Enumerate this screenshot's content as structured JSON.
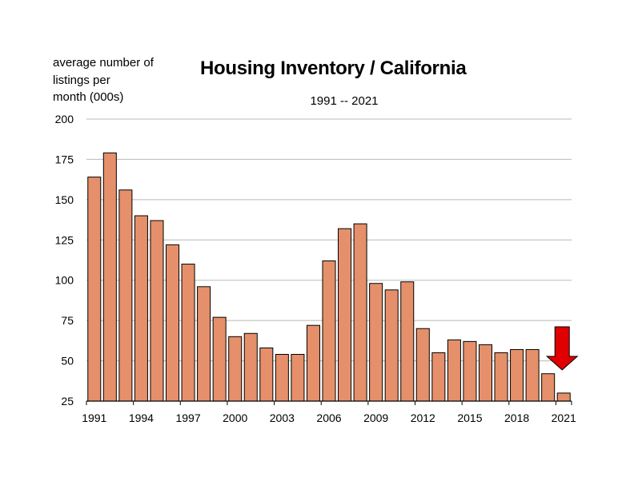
{
  "chart_data": {
    "type": "bar",
    "title": "Housing Inventory / California",
    "subtitle": "1991 -- 2021",
    "ylabel": [
      "average number of",
      "listings per",
      "month (000s)"
    ],
    "xlabel": "",
    "ylim": [
      25,
      200
    ],
    "yticks": [
      "25",
      "50",
      "75",
      "100",
      "125",
      "150",
      "175",
      "200"
    ],
    "xtick_labels": [
      "1991",
      "1994",
      "1997",
      "2000",
      "2003",
      "2006",
      "2009",
      "2012",
      "2015",
      "2018",
      "2021"
    ],
    "categories": [
      "1991",
      "1992",
      "1993",
      "1994",
      "1995",
      "1996",
      "1997",
      "1998",
      "1999",
      "2000",
      "2001",
      "2002",
      "2003",
      "2004",
      "2005",
      "2006",
      "2007",
      "2008",
      "2009",
      "2010",
      "2011",
      "2012",
      "2013",
      "2014",
      "2015",
      "2016",
      "2017",
      "2018",
      "2019",
      "2020",
      "2021"
    ],
    "values": [
      164,
      179,
      156,
      140,
      137,
      122,
      110,
      96,
      77,
      65,
      67,
      58,
      54,
      54,
      72,
      112,
      132,
      135,
      98,
      94,
      99,
      70,
      55,
      63,
      62,
      60,
      55,
      57,
      57,
      42,
      30
    ],
    "grid": true,
    "bar_color": "#e5906a",
    "bar_edge_color": "#000000",
    "annotation": {
      "type": "down-arrow",
      "category": "2021",
      "color": "#e00000"
    }
  }
}
